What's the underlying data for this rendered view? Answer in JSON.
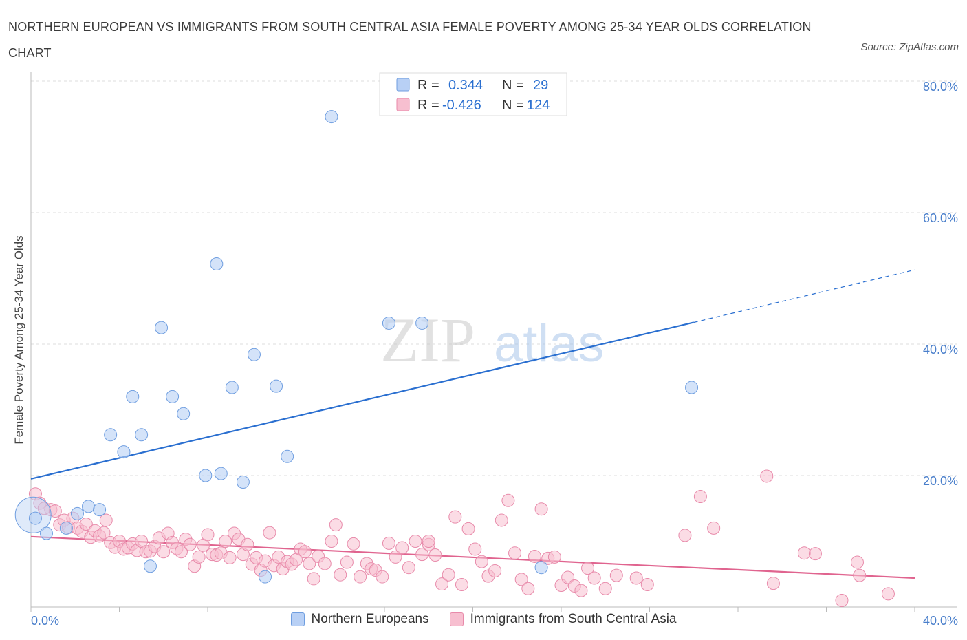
{
  "title": "NORTHERN EUROPEAN VS IMMIGRANTS FROM SOUTH CENTRAL ASIA FEMALE POVERTY AMONG 25-34 YEAR OLDS CORRELATION CHART",
  "source": "Source: ZipAtlas.com",
  "watermark": {
    "zip": "ZIP",
    "atlas": "atlas"
  },
  "colors": {
    "blue_fill": "#b8d0f5",
    "blue_stroke": "#6f9ee0",
    "blue_line": "#2a6fd0",
    "pink_fill": "#f7bfd0",
    "pink_stroke": "#e88aaa",
    "pink_line": "#e0648f",
    "grid": "#dcdcdc",
    "tick_label": "#4a7fcb"
  },
  "legend_top": [
    {
      "r_label": "R =",
      "r_value": "0.344",
      "n_label": "N =",
      "n_value": "29"
    },
    {
      "r_label": "R =",
      "r_value": "-0.426",
      "n_label": "N =",
      "n_value": "124"
    }
  ],
  "chart_data": {
    "type": "scatter",
    "title": "NORTHERN EUROPEAN VS IMMIGRANTS FROM SOUTH CENTRAL ASIA FEMALE POVERTY AMONG 25-34 YEAR OLDS CORRELATION CHART",
    "xlabel": "",
    "ylabel": "Female Poverty Among 25-34 Year Olds",
    "xlim": [
      0,
      40
    ],
    "ylim": [
      0,
      80
    ],
    "x_tick_labels": [
      "0.0%",
      "40.0%"
    ],
    "y_ticks": [
      20,
      40,
      60,
      80
    ],
    "y_tick_labels": [
      "20.0%",
      "40.0%",
      "60.0%",
      "80.0%"
    ],
    "grid": true,
    "legend_position": "bottom",
    "series": [
      {
        "name": "Northern Europeans",
        "color": "#b8d0f5",
        "trend": {
          "x0": 0,
          "y0": 19.5,
          "x1": 30,
          "y1": 43.3,
          "dashed_to_x": 40,
          "dashed_to_y": 51.3
        },
        "points": [
          [
            0.1,
            14.0
          ],
          [
            0.7,
            11.2
          ],
          [
            1.6,
            12.0
          ],
          [
            2.1,
            14.2
          ],
          [
            2.6,
            15.3
          ],
          [
            3.1,
            14.8
          ],
          [
            3.6,
            26.2
          ],
          [
            4.2,
            23.6
          ],
          [
            4.6,
            32.0
          ],
          [
            5.0,
            26.2
          ],
          [
            5.4,
            6.2
          ],
          [
            5.9,
            42.5
          ],
          [
            6.4,
            32.0
          ],
          [
            6.9,
            29.4
          ],
          [
            7.9,
            20.0
          ],
          [
            8.4,
            52.2
          ],
          [
            8.6,
            20.3
          ],
          [
            9.1,
            33.4
          ],
          [
            9.6,
            19.0
          ],
          [
            10.1,
            38.4
          ],
          [
            10.6,
            4.6
          ],
          [
            11.1,
            33.6
          ],
          [
            11.6,
            22.9
          ],
          [
            13.6,
            74.6
          ],
          [
            16.2,
            43.2
          ],
          [
            17.7,
            43.2
          ],
          [
            23.1,
            6.0
          ],
          [
            29.9,
            33.4
          ],
          [
            0.2,
            13.5
          ]
        ],
        "sizes": [
          48,
          9,
          9,
          9,
          9,
          9,
          9,
          9,
          9,
          9,
          9,
          9,
          9,
          9,
          9,
          9,
          9,
          9,
          9,
          9,
          9,
          9,
          9,
          9,
          9,
          9,
          9,
          9,
          9
        ]
      },
      {
        "name": "Immigrants from South Central Asia",
        "color": "#f7bfd0",
        "trend": {
          "x0": 0,
          "y0": 10.7,
          "x1": 40,
          "y1": 4.4
        },
        "points": [
          [
            0.2,
            17.2
          ],
          [
            0.4,
            15.8
          ],
          [
            0.6,
            15.0
          ],
          [
            0.9,
            14.8
          ],
          [
            1.1,
            14.6
          ],
          [
            1.3,
            12.5
          ],
          [
            1.5,
            13.2
          ],
          [
            1.7,
            12.1
          ],
          [
            1.9,
            13.5
          ],
          [
            2.1,
            12.0
          ],
          [
            2.3,
            11.5
          ],
          [
            2.5,
            12.6
          ],
          [
            2.7,
            10.6
          ],
          [
            2.9,
            11.6
          ],
          [
            3.1,
            10.8
          ],
          [
            3.3,
            11.3
          ],
          [
            3.4,
            13.2
          ],
          [
            3.6,
            9.8
          ],
          [
            3.8,
            9.1
          ],
          [
            4.0,
            10.0
          ],
          [
            4.2,
            8.8
          ],
          [
            4.4,
            9.0
          ],
          [
            4.6,
            9.6
          ],
          [
            4.8,
            8.6
          ],
          [
            5.0,
            10.0
          ],
          [
            5.2,
            8.4
          ],
          [
            5.4,
            8.5
          ],
          [
            5.6,
            9.2
          ],
          [
            5.8,
            10.5
          ],
          [
            6.0,
            8.4
          ],
          [
            6.2,
            11.2
          ],
          [
            6.4,
            9.8
          ],
          [
            6.6,
            8.9
          ],
          [
            6.8,
            8.4
          ],
          [
            7.0,
            10.3
          ],
          [
            7.2,
            9.5
          ],
          [
            7.4,
            6.2
          ],
          [
            7.6,
            7.6
          ],
          [
            7.8,
            9.4
          ],
          [
            8.0,
            11.0
          ],
          [
            8.2,
            8.0
          ],
          [
            8.4,
            7.9
          ],
          [
            8.6,
            8.2
          ],
          [
            8.8,
            10.0
          ],
          [
            9.0,
            7.5
          ],
          [
            9.2,
            11.2
          ],
          [
            9.4,
            10.3
          ],
          [
            9.6,
            8.0
          ],
          [
            9.8,
            9.5
          ],
          [
            10.0,
            6.5
          ],
          [
            10.2,
            7.5
          ],
          [
            10.4,
            5.6
          ],
          [
            10.6,
            7.0
          ],
          [
            10.8,
            11.3
          ],
          [
            11.0,
            6.3
          ],
          [
            11.2,
            7.6
          ],
          [
            11.4,
            5.8
          ],
          [
            11.6,
            6.9
          ],
          [
            11.8,
            6.5
          ],
          [
            12.0,
            7.2
          ],
          [
            12.2,
            8.8
          ],
          [
            12.4,
            8.4
          ],
          [
            12.6,
            6.6
          ],
          [
            12.8,
            4.3
          ],
          [
            13.0,
            7.7
          ],
          [
            13.3,
            6.6
          ],
          [
            13.6,
            10.0
          ],
          [
            13.8,
            12.5
          ],
          [
            14.0,
            4.9
          ],
          [
            14.3,
            6.8
          ],
          [
            14.6,
            9.6
          ],
          [
            14.9,
            4.6
          ],
          [
            15.2,
            6.6
          ],
          [
            15.4,
            5.8
          ],
          [
            15.6,
            5.6
          ],
          [
            15.9,
            4.6
          ],
          [
            16.2,
            9.7
          ],
          [
            16.5,
            7.6
          ],
          [
            16.8,
            9.0
          ],
          [
            17.1,
            6.0
          ],
          [
            17.4,
            10.0
          ],
          [
            17.7,
            8.0
          ],
          [
            18.0,
            9.5
          ],
          [
            18.3,
            7.9
          ],
          [
            18.6,
            3.5
          ],
          [
            18.9,
            4.9
          ],
          [
            19.2,
            13.7
          ],
          [
            19.5,
            3.4
          ],
          [
            19.8,
            11.9
          ],
          [
            20.1,
            8.8
          ],
          [
            20.4,
            6.9
          ],
          [
            20.7,
            4.7
          ],
          [
            21.0,
            5.5
          ],
          [
            21.3,
            13.2
          ],
          [
            21.6,
            16.2
          ],
          [
            21.9,
            8.2
          ],
          [
            22.2,
            4.2
          ],
          [
            22.5,
            2.8
          ],
          [
            22.8,
            7.7
          ],
          [
            23.1,
            14.9
          ],
          [
            23.4,
            7.4
          ],
          [
            23.7,
            7.6
          ],
          [
            24.0,
            3.3
          ],
          [
            24.3,
            4.5
          ],
          [
            24.6,
            3.2
          ],
          [
            24.9,
            2.5
          ],
          [
            25.2,
            5.9
          ],
          [
            25.5,
            4.4
          ],
          [
            26.0,
            2.8
          ],
          [
            26.5,
            4.8
          ],
          [
            27.4,
            4.4
          ],
          [
            27.9,
            3.4
          ],
          [
            29.6,
            10.9
          ],
          [
            30.3,
            16.8
          ],
          [
            30.9,
            12.0
          ],
          [
            33.3,
            19.9
          ],
          [
            33.6,
            3.6
          ],
          [
            35.0,
            8.2
          ],
          [
            35.5,
            8.1
          ],
          [
            36.7,
            1.0
          ],
          [
            37.4,
            6.8
          ],
          [
            37.5,
            4.8
          ],
          [
            38.8,
            2.0
          ],
          [
            18.0,
            10.0
          ]
        ]
      }
    ]
  }
}
